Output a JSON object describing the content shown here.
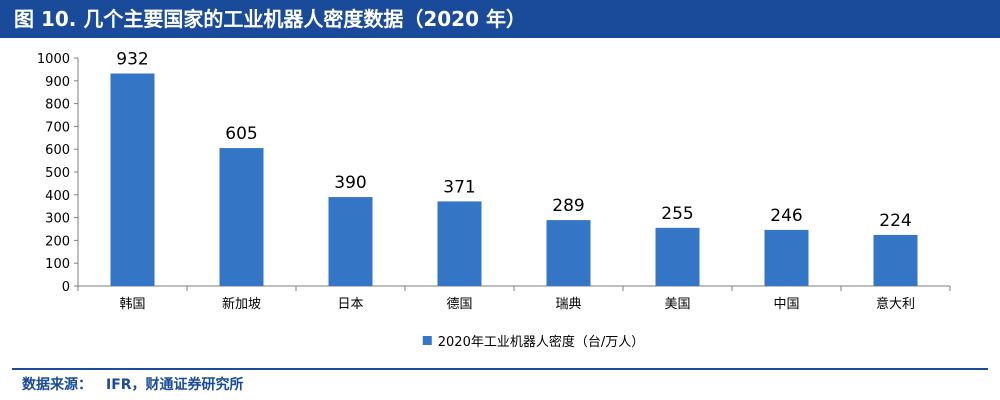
{
  "header": {
    "title": "图 10. 几个主要国家的工业机器人密度数据（2020 年）"
  },
  "chart_data": {
    "type": "bar",
    "categories": [
      "韩国",
      "新加坡",
      "日本",
      "德国",
      "瑞典",
      "美国",
      "中国",
      "意大利"
    ],
    "series": [
      {
        "name": "2020年工业机器人密度（台/万人）",
        "values": [
          932,
          605,
          390,
          371,
          289,
          255,
          246,
          224
        ]
      }
    ],
    "ylim": [
      0,
      1000
    ],
    "yticks": [
      0,
      100,
      200,
      300,
      400,
      500,
      600,
      700,
      800,
      900,
      1000
    ],
    "grid": false,
    "legend_position": "bottom-center",
    "colors": {
      "bar": "#3575c6",
      "axis": "#7f7f7f",
      "text": "#000000"
    }
  },
  "footer": {
    "source_label": "数据来源：",
    "source_text": "IFR，财通证券研究所"
  }
}
